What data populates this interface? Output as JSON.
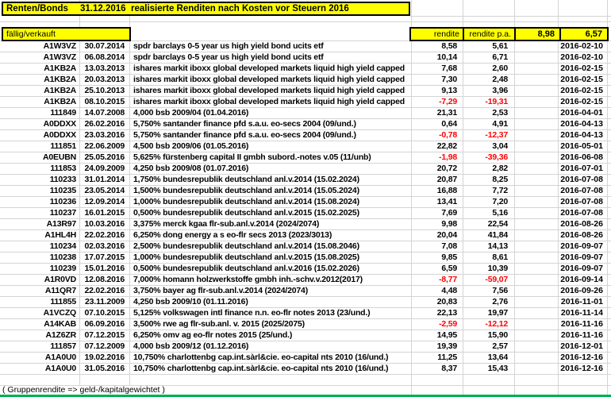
{
  "title": {
    "label": "Renten/Bonds",
    "date": "31.12.2016",
    "subtitle": "realisierte Renditen nach Kosten vor Steuern 2016"
  },
  "header": {
    "status_label": "fällig/verkauft",
    "rendite_label": "rendite",
    "rendite_pa_label": "rendite p.a.",
    "total_rendite": "8,98",
    "total_rendite_pa": "6,57"
  },
  "rows": [
    {
      "id": "A1W3VZ",
      "bought": "30.07.2014",
      "name": "spdr barclays 0-5 year us high yield bond ucits etf",
      "rendite": "8,58",
      "rendite_pa": "5,61",
      "sold": "2016-02-10",
      "negative": false
    },
    {
      "id": "A1W3VZ",
      "bought": "06.08.2014",
      "name": "spdr barclays 0-5 year us high yield bond ucits etf",
      "rendite": "10,14",
      "rendite_pa": "6,71",
      "sold": "2016-02-10",
      "negative": false
    },
    {
      "id": "A1KB2A",
      "bought": "13.03.2013",
      "name": "ishares markit iboxx global developed markets liquid high yield capped",
      "rendite": "7,68",
      "rendite_pa": "2,60",
      "sold": "2016-02-15",
      "negative": false
    },
    {
      "id": "A1KB2A",
      "bought": "20.03.2013",
      "name": "ishares markit iboxx global developed markets liquid high yield capped",
      "rendite": "7,30",
      "rendite_pa": "2,48",
      "sold": "2016-02-15",
      "negative": false
    },
    {
      "id": "A1KB2A",
      "bought": "25.10.2013",
      "name": "ishares markit iboxx global developed markets liquid high yield capped",
      "rendite": "9,13",
      "rendite_pa": "3,96",
      "sold": "2016-02-15",
      "negative": false
    },
    {
      "id": "A1KB2A",
      "bought": "08.10.2015",
      "name": "ishares markit iboxx global developed markets liquid high yield capped",
      "rendite": "-7,29",
      "rendite_pa": "-19,31",
      "sold": "2016-02-15",
      "negative": true
    },
    {
      "id": "111849",
      "bought": "14.07.2008",
      "name": "4,000 bsb 2009/04 (01.04.2016)",
      "rendite": "21,31",
      "rendite_pa": "2,53",
      "sold": "2016-04-01",
      "negative": false
    },
    {
      "id": "A0DDXX",
      "bought": "26.02.2016",
      "name": "5,750% santander finance pfd s.a.u. eo-secs 2004 (09/und.)",
      "rendite": "0,64",
      "rendite_pa": "4,91",
      "sold": "2016-04-13",
      "negative": false
    },
    {
      "id": "A0DDXX",
      "bought": "23.03.2016",
      "name": "5,750% santander finance pfd s.a.u. eo-secs 2004 (09/und.)",
      "rendite": "-0,78",
      "rendite_pa": "-12,37",
      "sold": "2016-04-13",
      "negative": true
    },
    {
      "id": "111851",
      "bought": "22.06.2009",
      "name": "4,500 bsb 2009/06 (01.05.2016)",
      "rendite": "22,82",
      "rendite_pa": "3,04",
      "sold": "2016-05-01",
      "negative": false
    },
    {
      "id": "A0EUBN",
      "bought": "25.05.2016",
      "name": "5,625% fürstenberg capital II gmbh subord.-notes v.05 (11/unb)",
      "rendite": "-1,98",
      "rendite_pa": "-39,36",
      "sold": "2016-06-08",
      "negative": true
    },
    {
      "id": "111853",
      "bought": "24.09.2009",
      "name": "4,250 bsb 2009/08 (01.07.2016)",
      "rendite": "20,72",
      "rendite_pa": "2,82",
      "sold": "2016-07-01",
      "negative": false
    },
    {
      "id": "110233",
      "bought": "31.01.2014",
      "name": "1,750% bundesrepublik deutschland anl.v.2014 (15.02.2024)",
      "rendite": "20,87",
      "rendite_pa": "8,25",
      "sold": "2016-07-08",
      "negative": false
    },
    {
      "id": "110235",
      "bought": "23.05.2014",
      "name": "1,500% bundesrepublik deutschland anl.v.2014 (15.05.2024)",
      "rendite": "16,88",
      "rendite_pa": "7,72",
      "sold": "2016-07-08",
      "negative": false
    },
    {
      "id": "110236",
      "bought": "12.09.2014",
      "name": "1,000% bundesrepublik deutschland anl.v.2014 (15.08.2024)",
      "rendite": "13,41",
      "rendite_pa": "7,20",
      "sold": "2016-07-08",
      "negative": false
    },
    {
      "id": "110237",
      "bought": "16.01.2015",
      "name": "0,500% bundesrepublik deutschland anl.v.2015 (15.02.2025)",
      "rendite": "7,69",
      "rendite_pa": "5,16",
      "sold": "2016-07-08",
      "negative": false
    },
    {
      "id": "A13R97",
      "bought": "10.03.2016",
      "name": "3,375% merck kgaa flr-sub.anl.v.2014 (2024/2074)",
      "rendite": "9,98",
      "rendite_pa": "22,54",
      "sold": "2016-08-26",
      "negative": false
    },
    {
      "id": "A1HL4H",
      "bought": "22.02.2016",
      "name": "6,250% dong energy a s eo-flr secs 2013 (2023/3013)",
      "rendite": "20,04",
      "rendite_pa": "41,84",
      "sold": "2016-08-26",
      "negative": false
    },
    {
      "id": "110234",
      "bought": "02.03.2016",
      "name": "2,500% bundesrepublik deutschland anl.v.2014 (15.08.2046)",
      "rendite": "7,08",
      "rendite_pa": "14,13",
      "sold": "2016-09-07",
      "negative": false
    },
    {
      "id": "110238",
      "bought": "17.07.2015",
      "name": "1,000% bundesrepublik deutschland anl.v.2015 (15.08.2025)",
      "rendite": "9,85",
      "rendite_pa": "8,61",
      "sold": "2016-09-07",
      "negative": false
    },
    {
      "id": "110239",
      "bought": "15.01.2016",
      "name": "0,500% bundesrepublik deutschland anl.v.2016 (15.02.2026)",
      "rendite": "6,59",
      "rendite_pa": "10,39",
      "sold": "2016-09-07",
      "negative": false
    },
    {
      "id": "A1R0VD",
      "bought": "12.08.2016",
      "name": "7,000% homann holzwerkstoffe gmbh inh.-schv.v.2012(2017)",
      "rendite": "-8,77",
      "rendite_pa": "-59,07",
      "sold": "2016-09-14",
      "negative": true
    },
    {
      "id": "A11QR7",
      "bought": "22.02.2016",
      "name": "3,750% bayer ag flr-sub.anl.v.2014 (2024/2074)",
      "rendite": "4,48",
      "rendite_pa": "7,56",
      "sold": "2016-09-26",
      "negative": false
    },
    {
      "id": "111855",
      "bought": "23.11.2009",
      "name": "4,250 bsb 2009/10 (01.11.2016)",
      "rendite": "20,83",
      "rendite_pa": "2,76",
      "sold": "2016-11-01",
      "negative": false
    },
    {
      "id": "A1VCZQ",
      "bought": "07.10.2015",
      "name": "5,125% volkswagen intl finance n.n. eo-flr notes 2013 (23/und.)",
      "rendite": "22,13",
      "rendite_pa": "19,97",
      "sold": "2016-11-14",
      "negative": false
    },
    {
      "id": "A14KAB",
      "bought": "06.09.2016",
      "name": "3,500% rwe ag flr-sub.anl. v. 2015 (2025/2075)",
      "rendite": "-2,59",
      "rendite_pa": "-12,12",
      "sold": "2016-11-16",
      "negative": true
    },
    {
      "id": "A1Z6ZR",
      "bought": "07.12.2015",
      "name": "6,250% omv ag eo-flr notes 2015 (25/und.)",
      "rendite": "14,95",
      "rendite_pa": "15,90",
      "sold": "2016-11-16",
      "negative": false
    },
    {
      "id": "111857",
      "bought": "07.12.2009",
      "name": "4,000 bsb 2009/12 (01.12.2016)",
      "rendite": "19,39",
      "rendite_pa": "2,57",
      "sold": "2016-12-01",
      "negative": false
    },
    {
      "id": "A1A0U0",
      "bought": "19.02.2016",
      "name": "10,750% charlottenbg cap.int.sàrl&cie. eo-capital nts 2010 (16/und.)",
      "rendite": "11,25",
      "rendite_pa": "13,64",
      "sold": "2016-12-16",
      "negative": false
    },
    {
      "id": "A1A0U0",
      "bought": "31.05.2016",
      "name": "10,750% charlottenbg cap.int.sàrl&cie. eo-capital nts 2010 (16/und.)",
      "rendite": "8,37",
      "rendite_pa": "15,43",
      "sold": "2016-12-16",
      "negative": false
    }
  ],
  "footer": {
    "note": "( Gruppenrendite => geld-/kapitalgewichtet )"
  },
  "colors": {
    "accent_yellow": "#ffff00",
    "negative_red": "#ff0000",
    "gridline": "#d4d4d4",
    "bottom_strip_green": "#00b050"
  }
}
